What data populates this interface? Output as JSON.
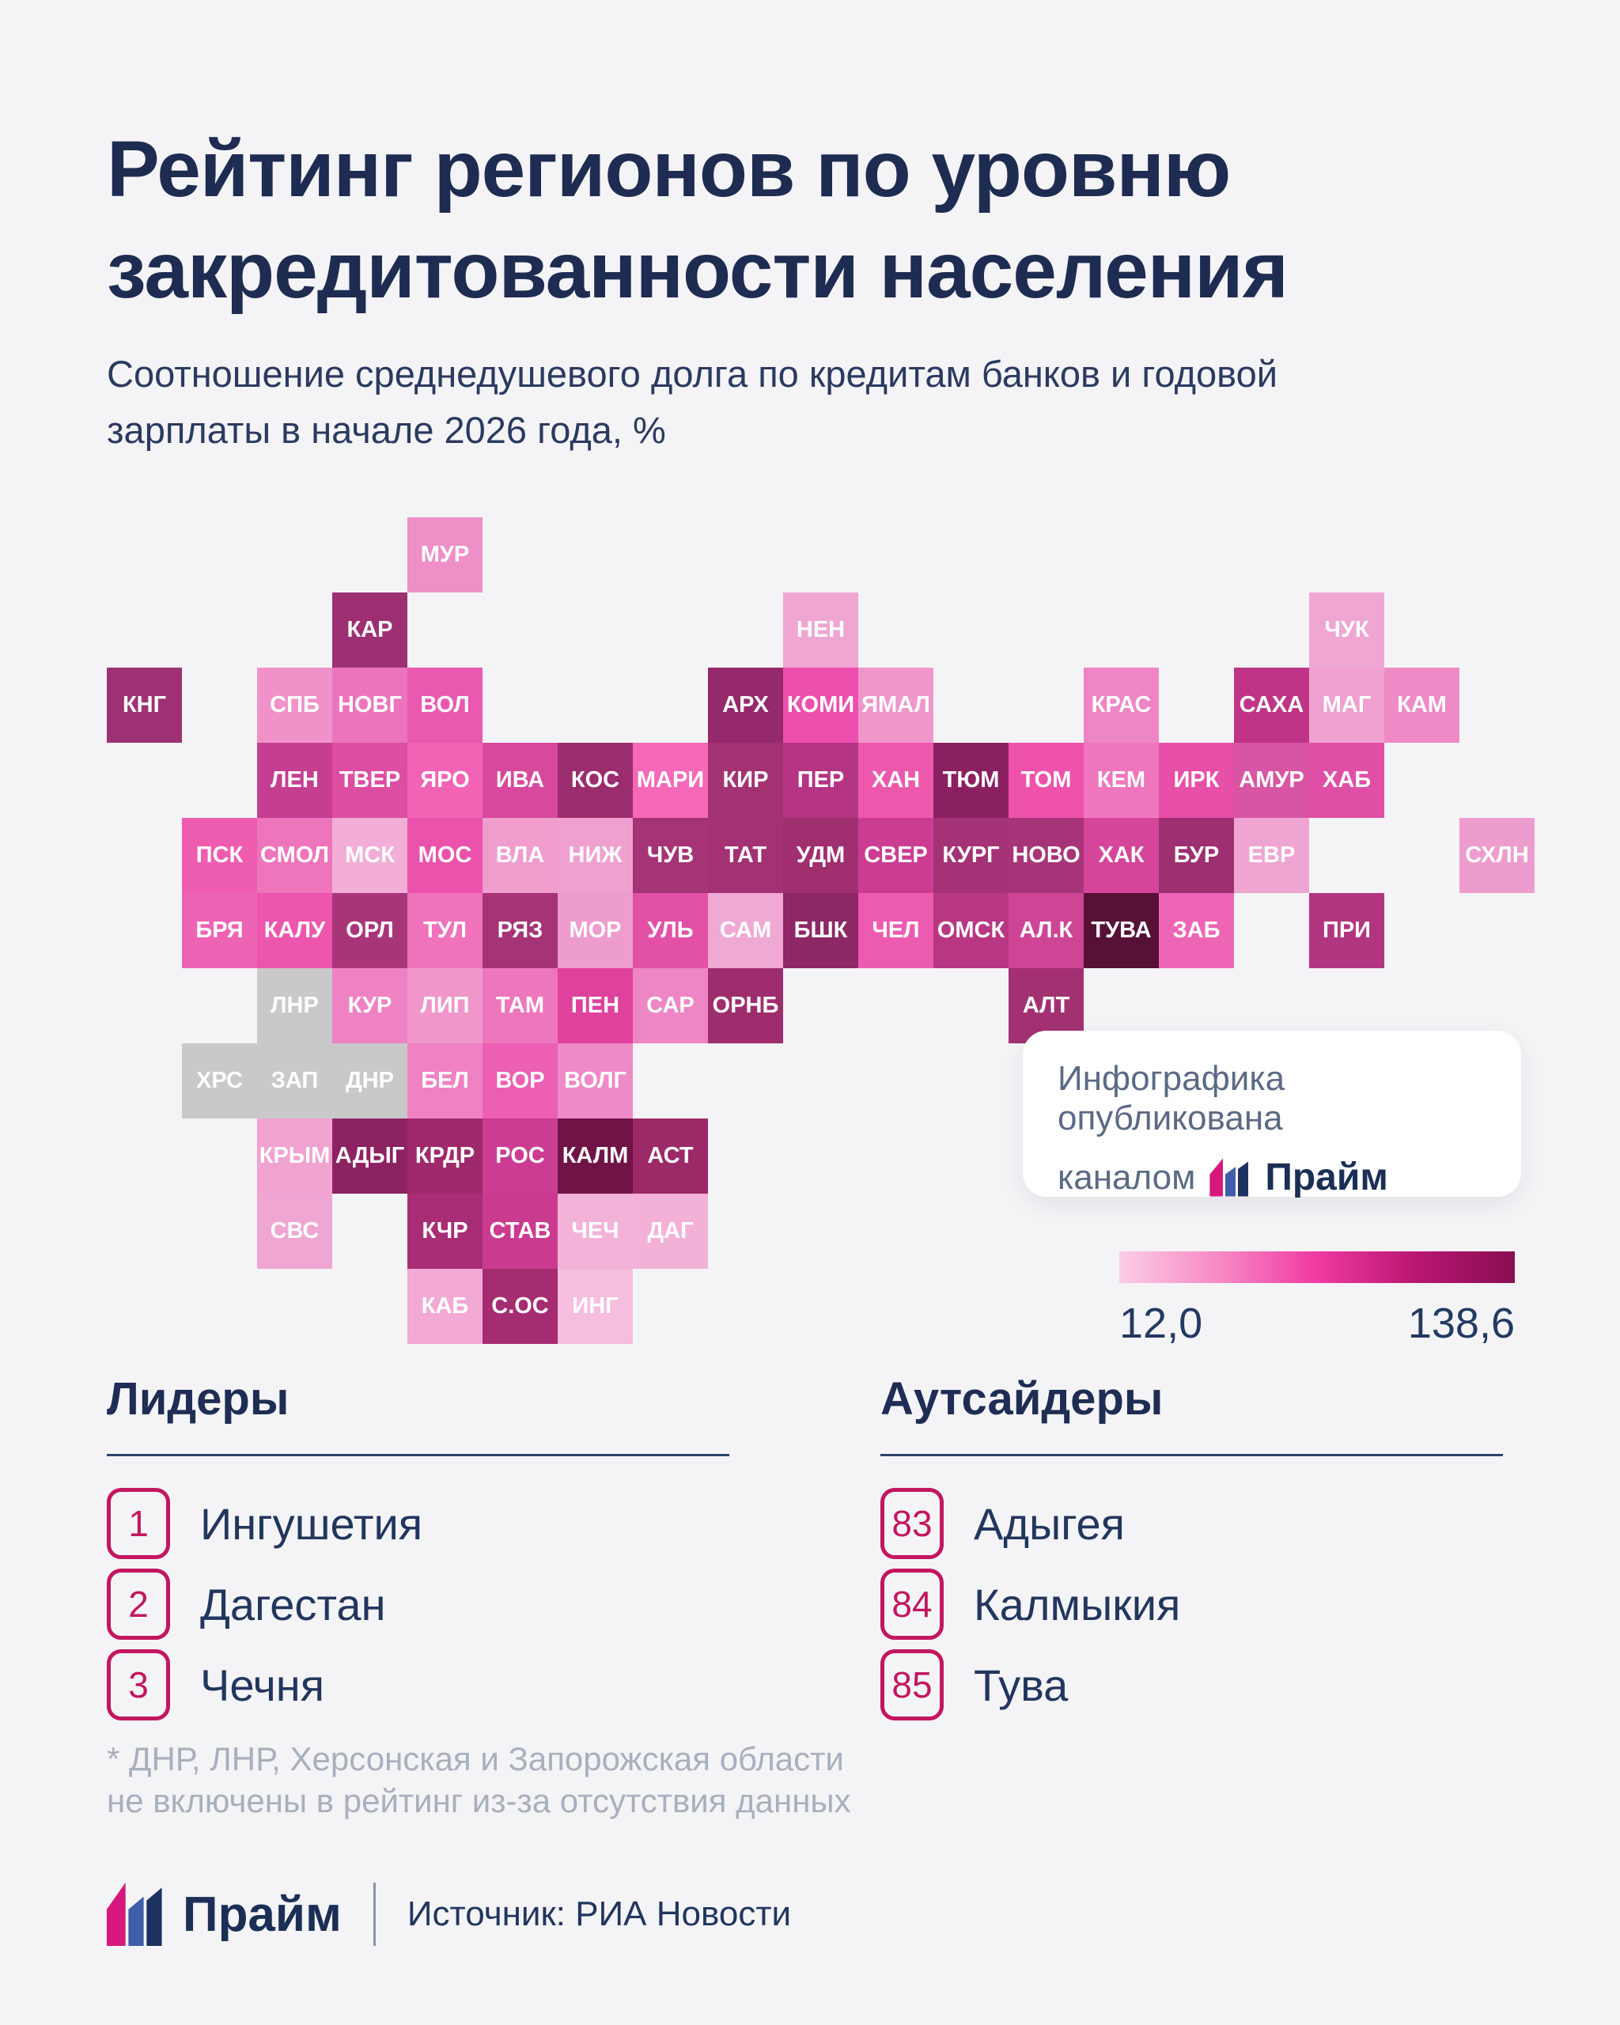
{
  "header": {
    "title_line1": "Рейтинг регионов по уровню",
    "title_line2": "закредитованности населения",
    "subtitle_line1": "Соотношение среднедушевого долга по кредитам банков и годовой",
    "subtitle_line2": "зарплаты в начале 2026 года, %"
  },
  "chart_data": {
    "type": "heatmap",
    "subtype": "tile-cartogram",
    "title": "Рейтинг регионов по уровню закредитованности населения",
    "unit": "%",
    "scale": {
      "min": 12.0,
      "max": 138.6,
      "min_label": "12,0",
      "max_label": "138,6",
      "gradient": [
        "#fbcce6",
        "#f78ac5",
        "#ef3aa2",
        "#b91672",
        "#890e52"
      ],
      "no_data_color": "#c9c9c9"
    },
    "regions": [
      {
        "label": "МУР",
        "col": 4,
        "row": 0,
        "color": "#ef8fc7"
      },
      {
        "label": "КАР",
        "col": 3,
        "row": 1,
        "color": "#9e2f73"
      },
      {
        "label": "НЕН",
        "col": 9,
        "row": 1,
        "color": "#f0a6d3"
      },
      {
        "label": "ЧУК",
        "col": 16,
        "row": 1,
        "color": "#f0a6d3"
      },
      {
        "label": "КНГ",
        "col": 0,
        "row": 2,
        "color": "#9d3174"
      },
      {
        "label": "СПБ",
        "col": 2,
        "row": 2,
        "color": "#f092c9"
      },
      {
        "label": "НОВГ",
        "col": 3,
        "row": 2,
        "color": "#ec74bc"
      },
      {
        "label": "ВОЛ",
        "col": 4,
        "row": 2,
        "color": "#ea58b0"
      },
      {
        "label": "АРХ",
        "col": 8,
        "row": 2,
        "color": "#96296b"
      },
      {
        "label": "КОМИ",
        "col": 9,
        "row": 2,
        "color": "#ec4fae"
      },
      {
        "label": "ЯМАЛ",
        "col": 10,
        "row": 2,
        "color": "#ef97cb"
      },
      {
        "label": "КРАС",
        "col": 13,
        "row": 2,
        "color": "#ee85c4"
      },
      {
        "label": "САХА",
        "col": 15,
        "row": 2,
        "color": "#c03487"
      },
      {
        "label": "МАГ",
        "col": 16,
        "row": 2,
        "color": "#efa0d0"
      },
      {
        "label": "КАМ",
        "col": 17,
        "row": 2,
        "color": "#ee8ac6"
      },
      {
        "label": "ЛЕН",
        "col": 2,
        "row": 3,
        "color": "#c53e92"
      },
      {
        "label": "ТВЕР",
        "col": 3,
        "row": 3,
        "color": "#dd4da2"
      },
      {
        "label": "ЯРО",
        "col": 4,
        "row": 3,
        "color": "#f263b4"
      },
      {
        "label": "ИВА",
        "col": 5,
        "row": 3,
        "color": "#d8489c"
      },
      {
        "label": "КОС",
        "col": 6,
        "row": 3,
        "color": "#9b2d6e"
      },
      {
        "label": "МАРИ",
        "col": 7,
        "row": 3,
        "color": "#f468b7"
      },
      {
        "label": "КИР",
        "col": 8,
        "row": 3,
        "color": "#a33273"
      },
      {
        "label": "ПЕР",
        "col": 9,
        "row": 3,
        "color": "#b53484"
      },
      {
        "label": "ХАН",
        "col": 10,
        "row": 3,
        "color": "#ed58ac"
      },
      {
        "label": "ТЮМ",
        "col": 11,
        "row": 3,
        "color": "#8b2060"
      },
      {
        "label": "ТОМ",
        "col": 12,
        "row": 3,
        "color": "#ee52ab"
      },
      {
        "label": "КЕМ",
        "col": 13,
        "row": 3,
        "color": "#ef76bd"
      },
      {
        "label": "ИРК",
        "col": 14,
        "row": 3,
        "color": "#e84fa8"
      },
      {
        "label": "АМУР",
        "col": 15,
        "row": 3,
        "color": "#d855a3"
      },
      {
        "label": "ХАБ",
        "col": 16,
        "row": 3,
        "color": "#e04fa5"
      },
      {
        "label": "ПСК",
        "col": 1,
        "row": 4,
        "color": "#ee5cb0"
      },
      {
        "label": "СМОЛ",
        "col": 2,
        "row": 4,
        "color": "#ee74bc"
      },
      {
        "label": "МСК",
        "col": 3,
        "row": 4,
        "color": "#f2aed6"
      },
      {
        "label": "МОС",
        "col": 4,
        "row": 4,
        "color": "#ea52ab"
      },
      {
        "label": "ВЛА",
        "col": 5,
        "row": 4,
        "color": "#f09ccd"
      },
      {
        "label": "НИЖ",
        "col": 6,
        "row": 4,
        "color": "#efa0d0"
      },
      {
        "label": "ЧУВ",
        "col": 7,
        "row": 4,
        "color": "#a53376"
      },
      {
        "label": "ТАТ",
        "col": 8,
        "row": 4,
        "color": "#a33173"
      },
      {
        "label": "УДМ",
        "col": 9,
        "row": 4,
        "color": "#a02f70"
      },
      {
        "label": "СВЕР",
        "col": 10,
        "row": 4,
        "color": "#cb3d92"
      },
      {
        "label": "КУРГ",
        "col": 11,
        "row": 4,
        "color": "#a33376"
      },
      {
        "label": "НОВО",
        "col": 12,
        "row": 4,
        "color": "#a73478"
      },
      {
        "label": "ХАК",
        "col": 13,
        "row": 4,
        "color": "#d5459a"
      },
      {
        "label": "БУР",
        "col": 14,
        "row": 4,
        "color": "#9e2f70"
      },
      {
        "label": "ЕВР",
        "col": 15,
        "row": 4,
        "color": "#efa5d2"
      },
      {
        "label": "СХЛН",
        "col": 18,
        "row": 4,
        "color": "#ee9ccd"
      },
      {
        "label": "БРЯ",
        "col": 1,
        "row": 5,
        "color": "#ee64b4"
      },
      {
        "label": "КАЛУ",
        "col": 2,
        "row": 5,
        "color": "#ec56ac"
      },
      {
        "label": "ОРЛ",
        "col": 3,
        "row": 5,
        "color": "#a93579"
      },
      {
        "label": "ТУЛ",
        "col": 4,
        "row": 5,
        "color": "#ef72bb"
      },
      {
        "label": "РЯЗ",
        "col": 5,
        "row": 5,
        "color": "#a53375"
      },
      {
        "label": "МОР",
        "col": 6,
        "row": 5,
        "color": "#ee9bce"
      },
      {
        "label": "УЛЬ",
        "col": 7,
        "row": 5,
        "color": "#e351a7"
      },
      {
        "label": "САМ",
        "col": 8,
        "row": 5,
        "color": "#f0a9d4"
      },
      {
        "label": "БШК",
        "col": 9,
        "row": 5,
        "color": "#8e2765"
      },
      {
        "label": "ЧЕЛ",
        "col": 10,
        "row": 5,
        "color": "#ed5bb0"
      },
      {
        "label": "ОМСК",
        "col": 11,
        "row": 5,
        "color": "#b83682"
      },
      {
        "label": "АЛ.К",
        "col": 12,
        "row": 5,
        "color": "#ce4596"
      },
      {
        "label": "ТУВА",
        "col": 13,
        "row": 5,
        "color": "#571036"
      },
      {
        "label": "ЗАБ",
        "col": 14,
        "row": 5,
        "color": "#ee65b5"
      },
      {
        "label": "ПРИ",
        "col": 16,
        "row": 5,
        "color": "#b23580"
      },
      {
        "label": "ЛНР",
        "col": 2,
        "row": 6,
        "color": "#c9c9c9",
        "no_data": true
      },
      {
        "label": "КУР",
        "col": 3,
        "row": 6,
        "color": "#ee82c2"
      },
      {
        "label": "ЛИП",
        "col": 4,
        "row": 6,
        "color": "#f096cb"
      },
      {
        "label": "ТАМ",
        "col": 5,
        "row": 6,
        "color": "#ed76bd"
      },
      {
        "label": "ПЕН",
        "col": 6,
        "row": 6,
        "color": "#e0419c"
      },
      {
        "label": "САР",
        "col": 7,
        "row": 6,
        "color": "#ee85c4"
      },
      {
        "label": "ОРНБ",
        "col": 8,
        "row": 6,
        "color": "#9e2d6e"
      },
      {
        "label": "АЛТ",
        "col": 12,
        "row": 6,
        "color": "#a33172"
      },
      {
        "label": "ХРС",
        "col": 1,
        "row": 7,
        "color": "#c9c9c9",
        "no_data": true
      },
      {
        "label": "ЗАП",
        "col": 2,
        "row": 7,
        "color": "#c9c9c9",
        "no_data": true
      },
      {
        "label": "ДНР",
        "col": 3,
        "row": 7,
        "color": "#c9c9c9",
        "no_data": true
      },
      {
        "label": "БЕЛ",
        "col": 4,
        "row": 7,
        "color": "#ee82c3"
      },
      {
        "label": "ВОР",
        "col": 5,
        "row": 7,
        "color": "#ec5fb2"
      },
      {
        "label": "ВОЛГ",
        "col": 6,
        "row": 7,
        "color": "#ee8ac7"
      },
      {
        "label": "КРЫМ",
        "col": 2,
        "row": 8,
        "color": "#f0a2d1"
      },
      {
        "label": "АДЫГ",
        "col": 3,
        "row": 8,
        "color": "#8d2263"
      },
      {
        "label": "КРДР",
        "col": 4,
        "row": 8,
        "color": "#9e2a6b"
      },
      {
        "label": "РОС",
        "col": 5,
        "row": 8,
        "color": "#cb3c92"
      },
      {
        "label": "КАЛМ",
        "col": 6,
        "row": 8,
        "color": "#701347"
      },
      {
        "label": "АСТ",
        "col": 7,
        "row": 8,
        "color": "#9c2968"
      },
      {
        "label": "СВС",
        "col": 2,
        "row": 9,
        "color": "#f0a6d3"
      },
      {
        "label": "КЧР",
        "col": 4,
        "row": 9,
        "color": "#a82d75"
      },
      {
        "label": "СТАВ",
        "col": 5,
        "row": 9,
        "color": "#ca3a8e"
      },
      {
        "label": "ЧЕЧ",
        "col": 6,
        "row": 9,
        "color": "#f3b3d9"
      },
      {
        "label": "ДАГ",
        "col": 7,
        "row": 9,
        "color": "#f3b1d8"
      },
      {
        "label": "КАБ",
        "col": 4,
        "row": 10,
        "color": "#f2a9d4"
      },
      {
        "label": "С.ОС",
        "col": 5,
        "row": 10,
        "color": "#a62c72"
      },
      {
        "label": "ИНГ",
        "col": 6,
        "row": 10,
        "color": "#f5bdde"
      }
    ],
    "leaders": [
      {
        "rank": "1",
        "name": "Ингушетия"
      },
      {
        "rank": "2",
        "name": "Дагестан"
      },
      {
        "rank": "3",
        "name": "Чечня"
      }
    ],
    "outsiders": [
      {
        "rank": "83",
        "name": "Адыгея"
      },
      {
        "rank": "84",
        "name": "Калмыкия"
      },
      {
        "rank": "85",
        "name": "Тува"
      }
    ]
  },
  "pub_card": {
    "line1": "Инфографика опубликована",
    "line2_prefix": "каналом",
    "brand": "Прайм"
  },
  "legend": {
    "min_label": "12,0",
    "max_label": "138,6"
  },
  "sections": {
    "leaders_title": "Лидеры",
    "outsiders_title": "Аутсайдеры"
  },
  "footnote": {
    "line1": "* ДНР, ЛНР, Херсонская и Запорожская области",
    "line2": "не включены в рейтинг из-за отсутствия данных"
  },
  "footer": {
    "brand": "Прайм",
    "source": "Источник: РИА Новости"
  },
  "brand_colors": {
    "bar_pink": "#d6187c",
    "bar_blue": "#3e5ea9",
    "bar_navy": "#1d3260"
  }
}
